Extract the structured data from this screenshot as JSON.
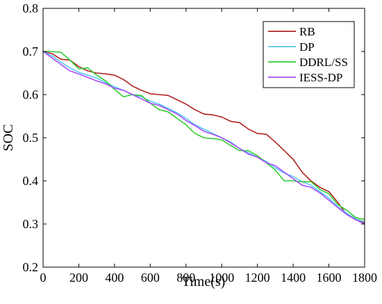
{
  "chart_data": {
    "type": "line",
    "xlabel": "Time(s)",
    "ylabel": "SOC",
    "xlim": [
      0,
      1800
    ],
    "ylim": [
      0.2,
      0.8
    ],
    "xticks": [
      0,
      200,
      400,
      600,
      800,
      1000,
      1200,
      1400,
      1600,
      1800
    ],
    "yticks": [
      0.2,
      0.3,
      0.4,
      0.5,
      0.6,
      0.7,
      0.8
    ],
    "xtick_labels": [
      "0",
      "200",
      "400",
      "600",
      "800",
      "1000",
      "1200",
      "1400",
      "1600",
      "1800"
    ],
    "ytick_labels": [
      "0.2",
      "0.3",
      "0.4",
      "0.5",
      "0.6",
      "0.7",
      "0.8"
    ],
    "grid": false,
    "legend_position": "top-right",
    "series": [
      {
        "name": "RB",
        "color": "#b22222",
        "x": [
          0,
          50,
          100,
          150,
          200,
          250,
          300,
          350,
          400,
          450,
          500,
          550,
          600,
          650,
          700,
          750,
          800,
          850,
          900,
          950,
          1000,
          1050,
          1100,
          1150,
          1200,
          1250,
          1300,
          1350,
          1400,
          1450,
          1500,
          1550,
          1600,
          1650,
          1700,
          1750,
          1800
        ],
        "values": [
          0.7,
          0.695,
          0.682,
          0.68,
          0.665,
          0.655,
          0.65,
          0.648,
          0.645,
          0.635,
          0.62,
          0.61,
          0.602,
          0.6,
          0.598,
          0.588,
          0.578,
          0.565,
          0.555,
          0.553,
          0.548,
          0.538,
          0.535,
          0.52,
          0.51,
          0.508,
          0.49,
          0.47,
          0.45,
          0.42,
          0.4,
          0.385,
          0.375,
          0.35,
          0.322,
          0.31,
          0.303
        ]
      },
      {
        "name": "DP",
        "color": "#58c8f0",
        "x": [
          0,
          50,
          100,
          150,
          200,
          250,
          300,
          350,
          400,
          450,
          500,
          550,
          600,
          650,
          700,
          750,
          800,
          850,
          900,
          950,
          1000,
          1050,
          1100,
          1150,
          1200,
          1250,
          1300,
          1350,
          1400,
          1450,
          1500,
          1550,
          1600,
          1650,
          1700,
          1750,
          1800
        ],
        "values": [
          0.7,
          0.69,
          0.675,
          0.662,
          0.652,
          0.645,
          0.638,
          0.628,
          0.618,
          0.61,
          0.6,
          0.595,
          0.585,
          0.578,
          0.568,
          0.558,
          0.545,
          0.53,
          0.52,
          0.51,
          0.5,
          0.49,
          0.475,
          0.465,
          0.455,
          0.445,
          0.43,
          0.418,
          0.41,
          0.398,
          0.39,
          0.375,
          0.36,
          0.34,
          0.325,
          0.312,
          0.305
        ]
      },
      {
        "name": "DDRL/SS",
        "color": "#33cc33",
        "x": [
          0,
          50,
          100,
          150,
          200,
          250,
          300,
          350,
          400,
          450,
          500,
          550,
          600,
          650,
          700,
          750,
          800,
          850,
          900,
          950,
          1000,
          1050,
          1100,
          1150,
          1200,
          1250,
          1300,
          1350,
          1400,
          1450,
          1500,
          1550,
          1600,
          1650,
          1700,
          1750,
          1800
        ],
        "values": [
          0.7,
          0.7,
          0.698,
          0.68,
          0.66,
          0.662,
          0.645,
          0.632,
          0.612,
          0.595,
          0.6,
          0.598,
          0.58,
          0.565,
          0.56,
          0.545,
          0.53,
          0.51,
          0.5,
          0.498,
          0.495,
          0.482,
          0.47,
          0.47,
          0.458,
          0.442,
          0.425,
          0.4,
          0.4,
          0.398,
          0.398,
          0.38,
          0.37,
          0.345,
          0.332,
          0.315,
          0.31
        ]
      },
      {
        "name": "IESS-DP",
        "color": "#a64dff",
        "x": [
          0,
          50,
          100,
          150,
          200,
          250,
          300,
          350,
          400,
          450,
          500,
          550,
          600,
          650,
          700,
          750,
          800,
          850,
          900,
          950,
          1000,
          1050,
          1100,
          1150,
          1200,
          1250,
          1300,
          1350,
          1400,
          1450,
          1500,
          1550,
          1600,
          1650,
          1700,
          1750,
          1800
        ],
        "values": [
          0.7,
          0.685,
          0.67,
          0.655,
          0.648,
          0.64,
          0.632,
          0.625,
          0.615,
          0.61,
          0.6,
          0.59,
          0.58,
          0.575,
          0.565,
          0.555,
          0.54,
          0.528,
          0.515,
          0.508,
          0.5,
          0.488,
          0.475,
          0.462,
          0.455,
          0.442,
          0.435,
          0.42,
          0.405,
          0.39,
          0.385,
          0.372,
          0.355,
          0.338,
          0.322,
          0.31,
          0.3
        ]
      }
    ]
  }
}
